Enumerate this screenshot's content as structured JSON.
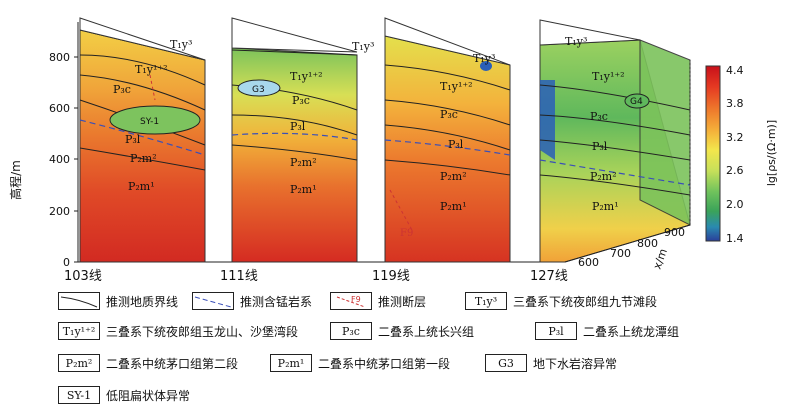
{
  "axes": {
    "ylabel": "高程/m",
    "yticks": [
      "0",
      "200",
      "400",
      "600",
      "800"
    ],
    "xprime_label": "x/m",
    "xprime_ticks": [
      "600",
      "700",
      "800",
      "900"
    ]
  },
  "sections": [
    {
      "label": "103线"
    },
    {
      "label": "111线"
    },
    {
      "label": "119线"
    },
    {
      "label": "127线"
    }
  ],
  "strata_labels": {
    "t1y3": "T₁y³",
    "t1y12": "T₁y¹⁺²",
    "p3c": "P₃c",
    "p3l": "P₃l",
    "p2m2": "P₂m²",
    "p2m1": "P₂m¹",
    "sy1": "SY-1",
    "g3": "G3",
    "g4": "G4",
    "f9": "F9"
  },
  "colorbar": {
    "label": "lg[ρs/(Ω·m)]",
    "ticks": [
      "4.4",
      "3.8",
      "3.2",
      "2.6",
      "2.0",
      "1.4"
    ],
    "colors": [
      "#c8101a",
      "#e53a22",
      "#ee7a2c",
      "#f4b13a",
      "#f3e64c",
      "#c6e05a",
      "#6fc25c",
      "#3aa35a",
      "#2a8ab0",
      "#2a3f9a"
    ]
  },
  "legend": [
    {
      "symbol_type": "line",
      "text": "推测地质界线"
    },
    {
      "symbol_type": "dashed-blue",
      "text": "推测含锰岩系"
    },
    {
      "symbol": "F9",
      "symbol_type": "fault",
      "text": "推测断层"
    },
    {
      "symbol": "T₁y³",
      "text": "三叠系下统夜郎组九节滩段"
    },
    {
      "symbol": "T₁y¹⁺²",
      "text": "三叠系下统夜郎组玉龙山、沙堡湾段"
    },
    {
      "symbol": "P₃c",
      "text": "二叠系上统长兴组"
    },
    {
      "symbol": "P₃l",
      "text": "二叠系上统龙潭组"
    },
    {
      "symbol": "P₂m²",
      "text": "二叠系中统茅口组第二段"
    },
    {
      "symbol": "P₂m¹",
      "text": "二叠系中统茅口组第一段"
    },
    {
      "symbol": "G3",
      "text": "地下水岩溶异常"
    },
    {
      "symbol": "SY-1",
      "text": "低阻扁状体异常"
    }
  ]
}
